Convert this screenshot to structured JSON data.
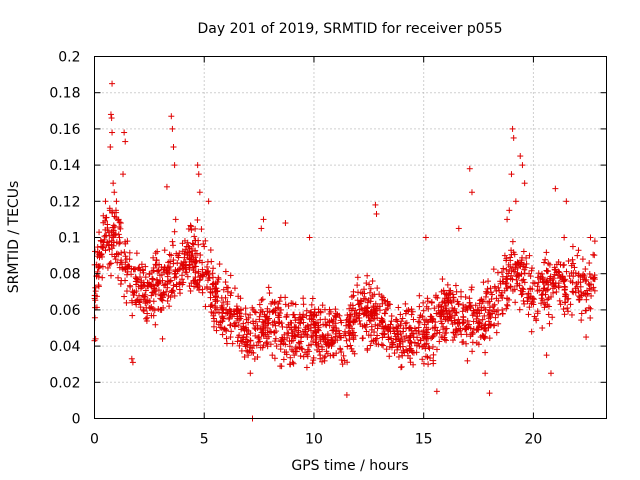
{
  "chart_data": {
    "type": "scatter",
    "title": "Day 201 of 2019, SRMTID for receiver p055",
    "xlabel": "GPS time / hours",
    "ylabel": "SRMTID / TECUs",
    "xlim": [
      0,
      23.33
    ],
    "ylim": [
      0,
      0.2
    ],
    "x_ticks": [
      0,
      5,
      10,
      15,
      20
    ],
    "x_tick_labels": [
      "0",
      "5",
      "10",
      "15",
      "20"
    ],
    "y_ticks": [
      0,
      0.02,
      0.04,
      0.06,
      0.08,
      0.1,
      0.12,
      0.14,
      0.16,
      0.18,
      0.2
    ],
    "y_tick_labels": [
      "0",
      "0.02",
      "0.04",
      "0.06",
      "0.08",
      "0.1",
      "0.12",
      "0.14",
      "0.16",
      "0.18",
      "0.2"
    ],
    "grid": true,
    "marker": "+",
    "color": "#e00000",
    "series": [
      {
        "name": "SRMTID",
        "trend": [
          [
            0.0,
            0.07
          ],
          [
            0.5,
            0.1
          ],
          [
            1.0,
            0.1
          ],
          [
            1.5,
            0.08
          ],
          [
            2.0,
            0.075
          ],
          [
            2.5,
            0.07
          ],
          [
            3.0,
            0.075
          ],
          [
            3.5,
            0.08
          ],
          [
            4.0,
            0.085
          ],
          [
            4.5,
            0.09
          ],
          [
            5.0,
            0.08
          ],
          [
            5.5,
            0.065
          ],
          [
            6.0,
            0.06
          ],
          [
            6.5,
            0.055
          ],
          [
            7.0,
            0.045
          ],
          [
            7.5,
            0.05
          ],
          [
            8.0,
            0.055
          ],
          [
            8.5,
            0.05
          ],
          [
            9.0,
            0.045
          ],
          [
            9.5,
            0.05
          ],
          [
            10.0,
            0.05
          ],
          [
            10.5,
            0.045
          ],
          [
            11.0,
            0.045
          ],
          [
            11.5,
            0.045
          ],
          [
            12.0,
            0.06
          ],
          [
            12.5,
            0.06
          ],
          [
            13.0,
            0.055
          ],
          [
            13.5,
            0.05
          ],
          [
            14.0,
            0.045
          ],
          [
            14.5,
            0.045
          ],
          [
            15.0,
            0.045
          ],
          [
            15.5,
            0.05
          ],
          [
            16.0,
            0.06
          ],
          [
            16.5,
            0.055
          ],
          [
            17.0,
            0.055
          ],
          [
            17.5,
            0.055
          ],
          [
            18.0,
            0.06
          ],
          [
            18.5,
            0.07
          ],
          [
            19.0,
            0.08
          ],
          [
            19.5,
            0.08
          ],
          [
            20.0,
            0.065
          ],
          [
            20.5,
            0.07
          ],
          [
            21.0,
            0.075
          ],
          [
            21.5,
            0.07
          ],
          [
            22.0,
            0.075
          ],
          [
            22.5,
            0.075
          ],
          [
            22.8,
            0.075
          ]
        ],
        "points": [
          [
            0.0,
            0.043
          ],
          [
            0.05,
            0.044
          ],
          [
            0.1,
            0.085
          ],
          [
            0.15,
            0.092
          ],
          [
            0.2,
            0.073
          ],
          [
            0.3,
            0.098
          ],
          [
            0.4,
            0.112
          ],
          [
            0.5,
            0.12
          ],
          [
            0.6,
            0.104
          ],
          [
            0.7,
            0.115
          ],
          [
            0.72,
            0.15
          ],
          [
            0.75,
            0.168
          ],
          [
            0.78,
            0.166
          ],
          [
            0.8,
            0.158
          ],
          [
            0.8,
            0.185
          ],
          [
            0.85,
            0.13
          ],
          [
            0.9,
            0.125
          ],
          [
            1.0,
            0.12
          ],
          [
            1.1,
            0.11
          ],
          [
            1.2,
            0.108
          ],
          [
            1.3,
            0.135
          ],
          [
            1.35,
            0.158
          ],
          [
            1.4,
            0.153
          ],
          [
            1.5,
            0.098
          ],
          [
            1.6,
            0.088
          ],
          [
            1.7,
            0.033
          ],
          [
            1.75,
            0.031
          ],
          [
            1.9,
            0.063
          ],
          [
            2.0,
            0.083
          ],
          [
            2.2,
            0.068
          ],
          [
            2.4,
            0.058
          ],
          [
            2.6,
            0.073
          ],
          [
            2.8,
            0.071
          ],
          [
            3.0,
            0.06
          ],
          [
            3.1,
            0.044
          ],
          [
            3.2,
            0.093
          ],
          [
            3.3,
            0.128
          ],
          [
            3.4,
            0.082
          ],
          [
            3.5,
            0.167
          ],
          [
            3.55,
            0.16
          ],
          [
            3.6,
            0.15
          ],
          [
            3.65,
            0.14
          ],
          [
            3.7,
            0.11
          ],
          [
            3.8,
            0.09
          ],
          [
            3.9,
            0.075
          ],
          [
            4.0,
            0.074
          ],
          [
            4.2,
            0.095
          ],
          [
            4.4,
            0.106
          ],
          [
            4.6,
            0.087
          ],
          [
            4.7,
            0.14
          ],
          [
            4.75,
            0.135
          ],
          [
            4.8,
            0.125
          ],
          [
            5.0,
            0.095
          ],
          [
            5.2,
            0.12
          ],
          [
            5.4,
            0.078
          ],
          [
            5.6,
            0.065
          ],
          [
            5.8,
            0.05
          ],
          [
            6.0,
            0.06
          ],
          [
            6.2,
            0.045
          ],
          [
            6.4,
            0.072
          ],
          [
            6.6,
            0.058
          ],
          [
            6.8,
            0.045
          ],
          [
            7.0,
            0.035
          ],
          [
            7.1,
            0.025
          ],
          [
            7.2,
            0.0
          ],
          [
            7.3,
            0.05
          ],
          [
            7.5,
            0.045
          ],
          [
            7.6,
            0.105
          ],
          [
            7.7,
            0.11
          ],
          [
            7.9,
            0.05
          ],
          [
            8.1,
            0.035
          ],
          [
            8.3,
            0.04
          ],
          [
            8.5,
            0.06
          ],
          [
            8.7,
            0.108
          ],
          [
            8.9,
            0.03
          ],
          [
            9.1,
            0.035
          ],
          [
            9.3,
            0.05
          ],
          [
            9.5,
            0.048
          ],
          [
            9.7,
            0.045
          ],
          [
            9.8,
            0.1
          ],
          [
            10.0,
            0.052
          ],
          [
            10.2,
            0.04
          ],
          [
            10.4,
            0.045
          ],
          [
            10.6,
            0.042
          ],
          [
            10.8,
            0.04
          ],
          [
            11.0,
            0.05
          ],
          [
            11.2,
            0.038
          ],
          [
            11.4,
            0.032
          ],
          [
            11.5,
            0.013
          ],
          [
            11.6,
            0.05
          ],
          [
            11.8,
            0.07
          ],
          [
            12.0,
            0.078
          ],
          [
            12.2,
            0.06
          ],
          [
            12.4,
            0.057
          ],
          [
            12.6,
            0.055
          ],
          [
            12.8,
            0.118
          ],
          [
            12.85,
            0.113
          ],
          [
            13.0,
            0.062
          ],
          [
            13.2,
            0.05
          ],
          [
            13.4,
            0.045
          ],
          [
            13.6,
            0.05
          ],
          [
            13.8,
            0.04
          ],
          [
            14.0,
            0.045
          ],
          [
            14.2,
            0.038
          ],
          [
            14.4,
            0.045
          ],
          [
            14.6,
            0.042
          ],
          [
            14.8,
            0.04
          ],
          [
            15.0,
            0.048
          ],
          [
            15.1,
            0.1
          ],
          [
            15.2,
            0.03
          ],
          [
            15.4,
            0.045
          ],
          [
            15.6,
            0.015
          ],
          [
            15.8,
            0.045
          ],
          [
            16.0,
            0.055
          ],
          [
            16.2,
            0.069
          ],
          [
            16.4,
            0.045
          ],
          [
            16.5,
            0.07
          ],
          [
            16.6,
            0.105
          ],
          [
            16.7,
            0.07
          ],
          [
            16.9,
            0.05
          ],
          [
            17.0,
            0.06
          ],
          [
            17.1,
            0.138
          ],
          [
            17.2,
            0.125
          ],
          [
            17.4,
            0.055
          ],
          [
            17.6,
            0.045
          ],
          [
            17.8,
            0.025
          ],
          [
            18.0,
            0.014
          ],
          [
            18.2,
            0.06
          ],
          [
            18.4,
            0.065
          ],
          [
            18.6,
            0.058
          ],
          [
            18.7,
            0.09
          ],
          [
            18.8,
            0.11
          ],
          [
            18.9,
            0.115
          ],
          [
            19.0,
            0.135
          ],
          [
            19.05,
            0.16
          ],
          [
            19.1,
            0.155
          ],
          [
            19.2,
            0.12
          ],
          [
            19.4,
            0.145
          ],
          [
            19.5,
            0.14
          ],
          [
            19.6,
            0.13
          ],
          [
            19.8,
            0.08
          ],
          [
            20.0,
            0.063
          ],
          [
            20.2,
            0.078
          ],
          [
            20.4,
            0.05
          ],
          [
            20.6,
            0.035
          ],
          [
            20.8,
            0.025
          ],
          [
            21.0,
            0.127
          ],
          [
            21.2,
            0.065
          ],
          [
            21.4,
            0.1
          ],
          [
            21.5,
            0.12
          ],
          [
            21.6,
            0.087
          ],
          [
            21.8,
            0.095
          ],
          [
            22.0,
            0.09
          ],
          [
            22.2,
            0.058
          ],
          [
            22.4,
            0.045
          ],
          [
            22.6,
            0.1
          ],
          [
            22.8,
            0.098
          ],
          [
            22.8,
            0.077
          ]
        ]
      }
    ]
  }
}
